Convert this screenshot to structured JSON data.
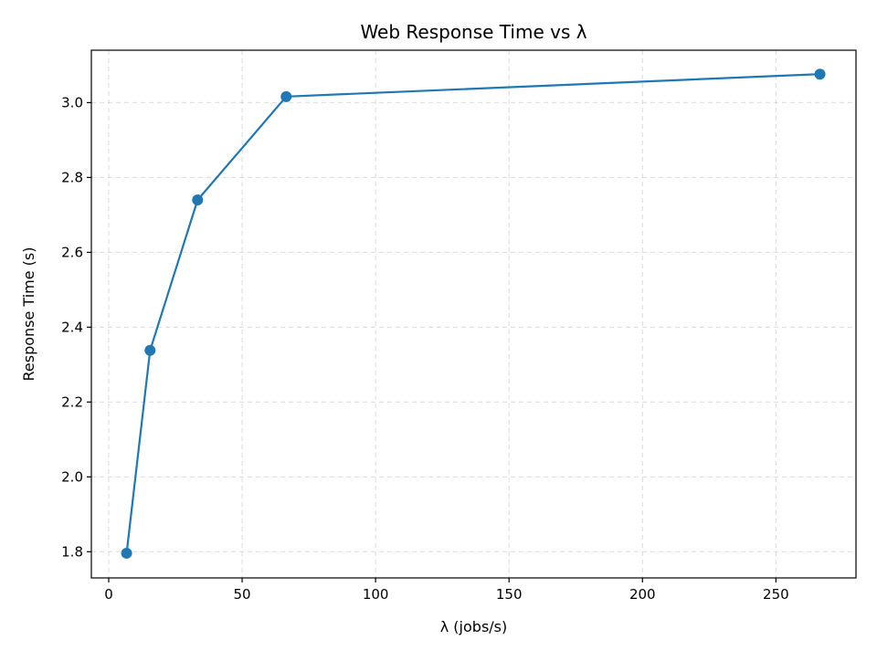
{
  "chart_data": {
    "type": "line",
    "title": "Web Response Time vs λ",
    "xlabel": "λ (jobs/s)",
    "ylabel": "Response Time (s)",
    "xlim": [
      -6.5,
      280
    ],
    "ylim": [
      1.73,
      3.14
    ],
    "xticks": [
      0,
      50,
      100,
      150,
      200,
      250
    ],
    "xtick_labels": [
      "0",
      "50",
      "100",
      "150",
      "200",
      "250"
    ],
    "yticks": [
      1.8,
      2.0,
      2.2,
      2.4,
      2.6,
      2.8,
      3.0
    ],
    "ytick_labels": [
      "1.8",
      "2.0",
      "2.2",
      "2.4",
      "2.6",
      "2.8",
      "3.0"
    ],
    "grid": true,
    "series": [
      {
        "color": "#1f77b4",
        "marker": "circle",
        "x": [
          6.7,
          15.5,
          33.3,
          66.5,
          266.5
        ],
        "y": [
          1.796,
          2.338,
          2.74,
          3.016,
          3.076
        ]
      }
    ]
  }
}
